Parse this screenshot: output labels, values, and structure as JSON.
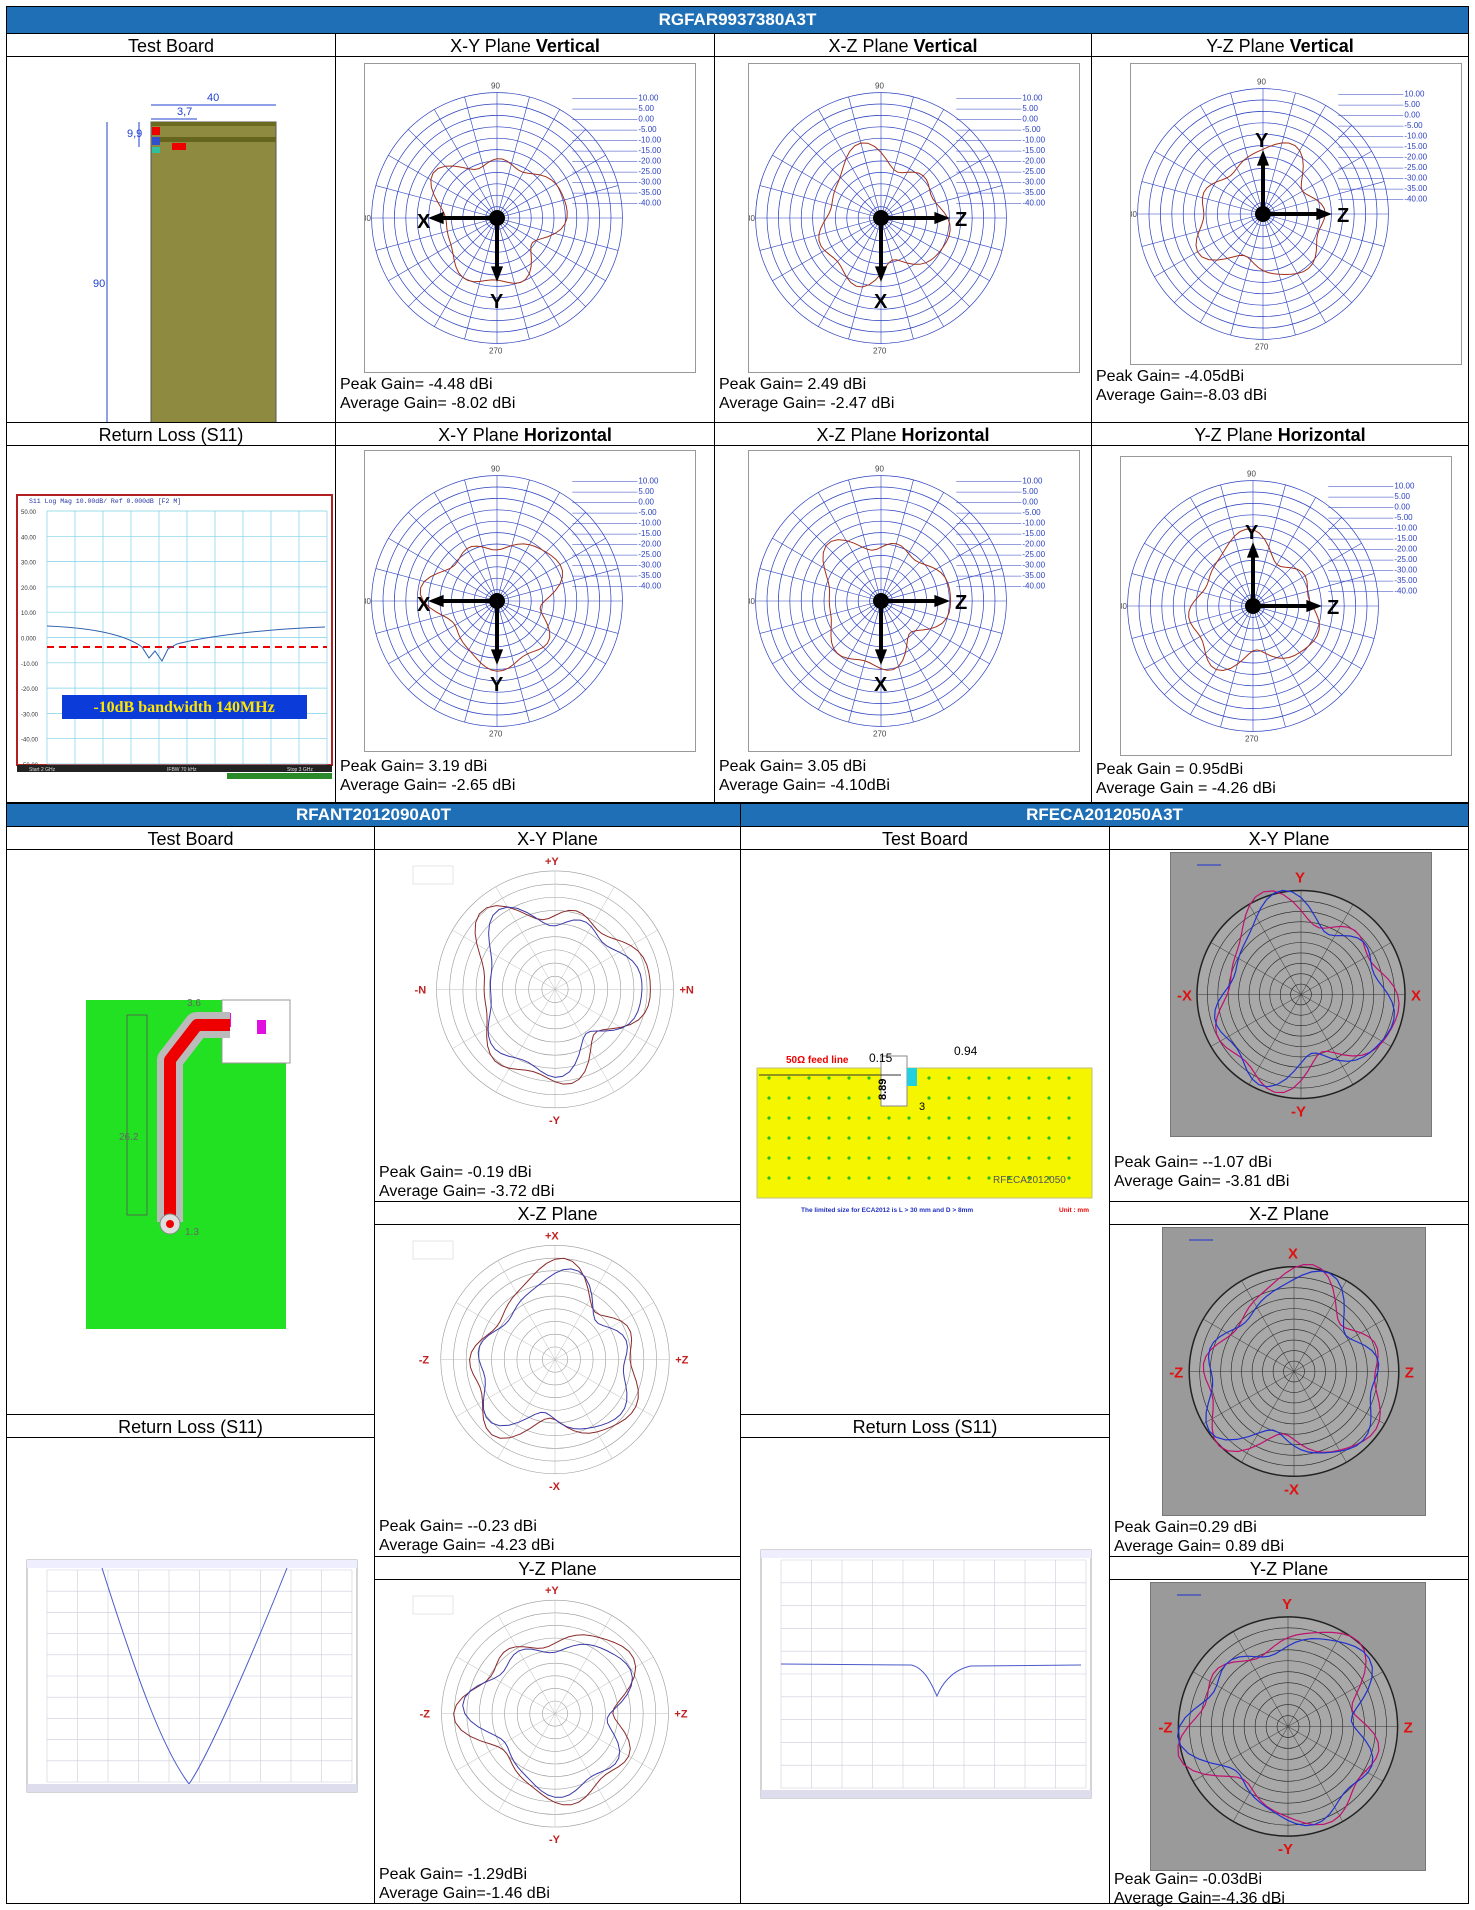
{
  "sections": {
    "top": {
      "title": "RGFAR9937380A3T"
    },
    "left": {
      "title": "RFANT2012090A0T"
    },
    "right": {
      "title": "RFECA2012050A3T"
    }
  },
  "top": {
    "test_board_label": "Test Board",
    "return_loss_label": "Return Loss (S11)",
    "xy_v_prefix": "X-Y Plane ",
    "xz_v_prefix": "X-Z Plane ",
    "yz_v_prefix": "Y-Z Plane ",
    "vertical": "Vertical",
    "horizontal": "Horizontal",
    "xy_h_prefix": "X-Y Plane ",
    "xz_h_prefix": "X-Z Plane ",
    "yz_h_prefix": "Y-Z Plane ",
    "board_dims": {
      "w": "40",
      "feed": "3,7",
      "h1": "9,9",
      "h": "90"
    },
    "bandwidth_note": "-10dB bandwidth 140MHz",
    "s11_header": "S11 Log Mag 10.00dB/ Ref 0.000dB [F2 M]",
    "s11_yticks": [
      "50.00",
      "40.00",
      "30.00",
      "20.00",
      "10.00",
      "0.000",
      "-10.00",
      "-20.00",
      "-30.00",
      "-40.00",
      "-50.00"
    ],
    "s11_footer_left": "Start 2 GHz",
    "s11_footer_mid": "IFBW 70 kHz",
    "s11_footer_right": "Stop 3 GHz",
    "gains": {
      "xy_v": [
        "Peak Gain= -4.48 dBi",
        " Average Gain= -8.02 dBi"
      ],
      "xz_v": [
        "Peak Gain= 2.49 dBi",
        "Average Gain= -2.47 dBi"
      ],
      "yz_v": [
        "Peak Gain= -4.05dBi",
        "Average Gain=-8.03 dBi"
      ],
      "xy_h": [
        "Peak Gain= 3.19 dBi",
        " Average Gain= -2.65 dBi"
      ],
      "xz_h": [
        "Peak Gain= 3.05 dBi",
        "Average Gain= -4.10dBi"
      ],
      "yz_h": [
        "Peak Gain = 0.95dBi",
        "Average Gain = -4.26 dBi"
      ]
    },
    "polar_scale": [
      "10.00",
      "5.00",
      "0.00",
      "-5.00",
      "-10.00",
      "-15.00",
      "-20.00",
      "-25.00",
      "-30.00",
      "-35.00",
      "-40.00"
    ],
    "angles": {
      "top": "90",
      "left": "180",
      "bottom": "270"
    },
    "axis_letters": {
      "xy": [
        "X",
        "Y"
      ],
      "xz": [
        "Z",
        "X"
      ],
      "yz": [
        "Y",
        "Z"
      ]
    }
  },
  "left": {
    "test_board_label": "Test Board",
    "return_loss_label": "Return Loss (S11)",
    "xy_label": "X-Y Plane",
    "xz_label": "X-Z Plane",
    "yz_label": "Y-Z Plane",
    "gains": {
      "xy": [
        "Peak Gain= -0.19 dBi",
        "Average Gain= -3.72 dBi"
      ],
      "xz": [
        "Peak Gain= --0.23 dBi",
        "Average Gain= -4.23 dBi"
      ],
      "yz": [
        "Peak Gain= -1.29dBi",
        "Average Gain=-1.46 dBi"
      ]
    },
    "axis": {
      "xy": [
        "+Y",
        "-N",
        "+N",
        "-Y"
      ],
      "xz": [
        "+X",
        "-Z",
        "+Z",
        "-X"
      ],
      "yz": [
        "+Y",
        "-Z",
        "+Z",
        "-Y"
      ]
    },
    "board_dims": {
      "a": "3.6",
      "b": "26.2",
      "c": "1.3"
    }
  },
  "right": {
    "test_board_label": "Test Board",
    "return_loss_label": "Return Loss (S11)",
    "xy_label": "X-Y Plane",
    "xz_label": "X-Z Plane",
    "yz_label": "Y-Z Plane",
    "gains": {
      "xy": [
        "Peak Gain= --1.07 dBi",
        "Average Gain= -3.81 dBi"
      ],
      "xz": [
        "Peak Gain=0.29 dBi",
        "Average Gain= 0.89 dBi"
      ],
      "yz": [
        "Peak Gain= -0.03dBi",
        "Average Gain=-4.36 dBi"
      ]
    },
    "axis": {
      "xy": [
        "Y",
        "-X",
        "X",
        "-Y"
      ],
      "xz": [
        "X",
        "-Z",
        "Z",
        "-X"
      ],
      "yz": [
        "Y",
        "-Z",
        "Z",
        "-Y"
      ]
    },
    "board": {
      "feed": "50Ω feed line",
      "d1": "0.15",
      "d2": "0.94",
      "d3": "8.89",
      "d4": "3",
      "name": "RFECA2012050",
      "note": "The limited size for ECA2012 is L > 30 mm and D > 8mm",
      "unit": "Unit : mm"
    }
  }
}
